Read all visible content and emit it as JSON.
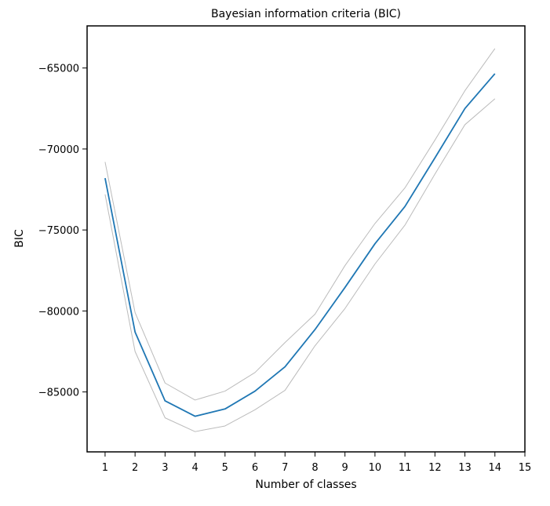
{
  "chart_data": {
    "type": "line",
    "title": "Bayesian information criteria (BIC)",
    "xlabel": "Number of classes",
    "ylabel": "BIC",
    "xlim": [
      0.4,
      15
    ],
    "ylim": [
      -88700,
      -62400
    ],
    "xticks": [
      1,
      2,
      3,
      4,
      5,
      6,
      7,
      8,
      9,
      10,
      11,
      12,
      13,
      14,
      15
    ],
    "xtick_labels": [
      "1",
      "2",
      "3",
      "4",
      "5",
      "6",
      "7",
      "8",
      "9",
      "10",
      "11",
      "12",
      "13",
      "14",
      "15"
    ],
    "yticks": [
      -85000,
      -80000,
      -75000,
      -70000,
      -65000
    ],
    "ytick_labels": [
      "−85000",
      "−80000",
      "−75000",
      "−70000",
      "−65000"
    ],
    "grid": false,
    "x": [
      1,
      2,
      3,
      4,
      5,
      6,
      7,
      8,
      9,
      10,
      11,
      12,
      13,
      14
    ],
    "series": [
      {
        "role": "mean",
        "color": "#1f77b4",
        "values": [
          -71800,
          -81300,
          -85550,
          -86500,
          -86050,
          -84950,
          -83450,
          -81150,
          -78550,
          -75850,
          -73550,
          -70550,
          -67500,
          -65350
        ]
      },
      {
        "role": "upper",
        "color": "#bbbbbb",
        "values": [
          -70800,
          -80100,
          -84450,
          -85500,
          -84950,
          -83800,
          -81950,
          -80200,
          -77200,
          -74600,
          -72400,
          -69450,
          -66400,
          -63800
        ]
      },
      {
        "role": "lower",
        "color": "#bbbbbb",
        "values": [
          -72800,
          -82500,
          -86600,
          -87450,
          -87100,
          -86100,
          -84900,
          -82150,
          -79850,
          -77100,
          -74700,
          -71550,
          -68500,
          -66900
        ]
      }
    ]
  }
}
